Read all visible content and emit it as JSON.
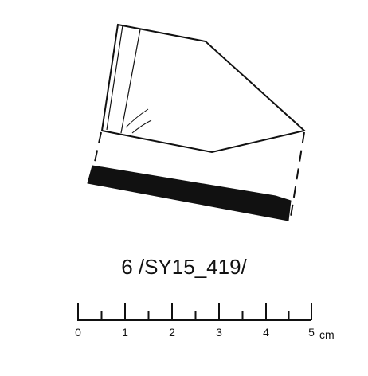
{
  "figure": {
    "label": "6 /SY15_419/"
  },
  "scale_bar": {
    "ticks": [
      "0",
      "1",
      "2",
      "3",
      "4",
      "5"
    ],
    "unit": "cm"
  },
  "colors": {
    "ink": "#111111",
    "section_fill": "#111111",
    "background": "#ffffff"
  }
}
